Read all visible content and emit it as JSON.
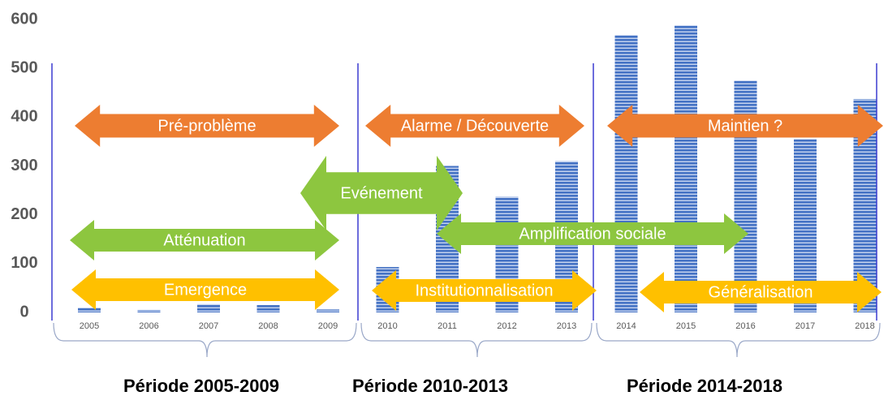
{
  "chart_data": {
    "type": "bar",
    "categories": [
      "2005",
      "2006",
      "2007",
      "2008",
      "2009",
      "2010",
      "2011",
      "2012",
      "2013",
      "2014",
      "2015",
      "2016",
      "2017",
      "2018"
    ],
    "values": [
      10,
      5,
      17,
      15,
      6,
      93,
      300,
      237,
      310,
      568,
      588,
      475,
      355,
      437
    ],
    "color": "#4472c4",
    "ylim": [
      0,
      600
    ],
    "yticks": [
      0,
      100,
      200,
      300,
      400,
      500,
      600
    ],
    "annotations": [
      {
        "text": "Pré-problème",
        "color": "#ed7d31"
      },
      {
        "text": "Alarme / Découverte",
        "color": "#ed7d31"
      },
      {
        "text": "Maintien ?",
        "color": "#ed7d31"
      },
      {
        "text": "Evénement",
        "color": "#8dc63f"
      },
      {
        "text": "Atténuation",
        "color": "#8dc63f"
      },
      {
        "text": "Amplification sociale",
        "color": "#8dc63f"
      },
      {
        "text": "Emergence",
        "color": "#ffc000"
      },
      {
        "text": "Institutionnalisation",
        "color": "#ffc000"
      },
      {
        "text": "Généralisation",
        "color": "#ffc000"
      }
    ],
    "periods": [
      {
        "label": "Période 2005-2009"
      },
      {
        "label": "Période 2010-2013"
      },
      {
        "label": "Période 2014-2018"
      }
    ]
  }
}
